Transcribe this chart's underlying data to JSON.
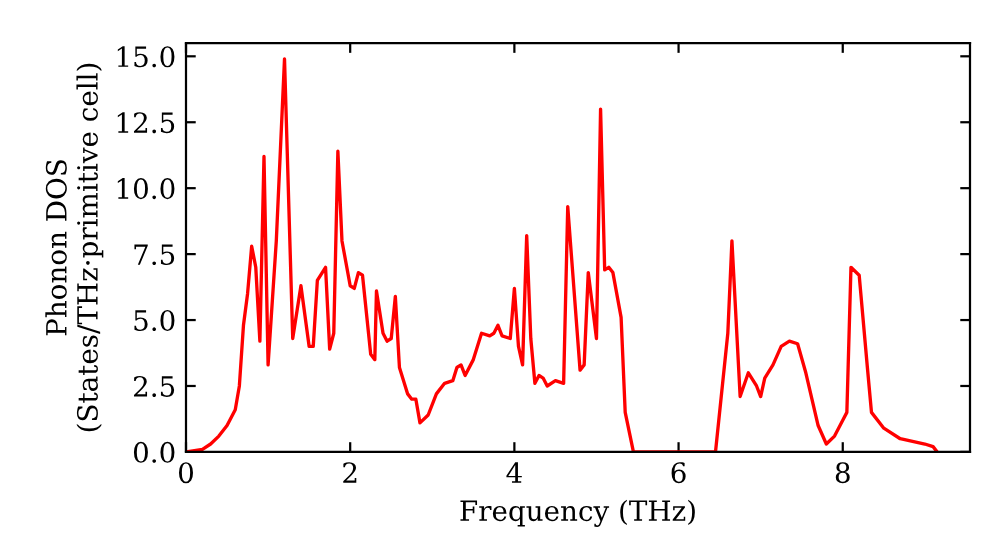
{
  "chart_data": {
    "type": "line",
    "xlabel": "Frequency (THz)",
    "ylabel": "Phonon DOS\n(States/THz·primitive cell)",
    "x": [
      0,
      0.2,
      0.3,
      0.4,
      0.5,
      0.6,
      0.65,
      0.7,
      0.75,
      0.8,
      0.85,
      0.9,
      0.95,
      1.0,
      1.1,
      1.2,
      1.3,
      1.4,
      1.5,
      1.55,
      1.6,
      1.7,
      1.75,
      1.8,
      1.85,
      1.9,
      2.0,
      2.05,
      2.1,
      2.15,
      2.25,
      2.3,
      2.32,
      2.4,
      2.45,
      2.5,
      2.55,
      2.6,
      2.7,
      2.75,
      2.8,
      2.85,
      2.95,
      3.05,
      3.15,
      3.25,
      3.3,
      3.35,
      3.4,
      3.5,
      3.6,
      3.7,
      3.75,
      3.8,
      3.85,
      3.95,
      4.0,
      4.05,
      4.1,
      4.15,
      4.2,
      4.25,
      4.3,
      4.35,
      4.4,
      4.5,
      4.6,
      4.65,
      4.8,
      4.85,
      4.9,
      5.0,
      5.05,
      5.1,
      5.15,
      5.2,
      5.3,
      5.35,
      5.45,
      6.45,
      6.6,
      6.65,
      6.75,
      6.85,
      6.95,
      7.0,
      7.05,
      7.15,
      7.25,
      7.35,
      7.45,
      7.55,
      7.7,
      7.8,
      7.9,
      8.0,
      8.05,
      8.1,
      8.2,
      8.3,
      8.35,
      8.5,
      8.7,
      9.0,
      9.1,
      9.15
    ],
    "series": [
      {
        "color": "#ff0000",
        "values": [
          0,
          0.1,
          0.3,
          0.6,
          1.0,
          1.6,
          2.5,
          4.8,
          6.0,
          7.8,
          7.0,
          4.2,
          11.2,
          3.3,
          8.0,
          14.9,
          4.3,
          6.3,
          4.0,
          4.0,
          6.5,
          7.0,
          3.9,
          4.5,
          11.4,
          8.0,
          6.3,
          6.2,
          6.8,
          6.7,
          3.7,
          3.5,
          6.1,
          4.5,
          4.2,
          4.3,
          5.9,
          3.2,
          2.2,
          2.0,
          2.0,
          1.1,
          1.4,
          2.2,
          2.6,
          2.7,
          3.2,
          3.3,
          2.9,
          3.5,
          4.5,
          4.4,
          4.5,
          4.8,
          4.4,
          4.3,
          6.2,
          4.0,
          3.3,
          8.2,
          4.3,
          2.6,
          2.9,
          2.8,
          2.5,
          2.7,
          2.6,
          9.3,
          3.1,
          3.3,
          6.8,
          4.3,
          13.0,
          6.9,
          7.0,
          6.8,
          5.1,
          1.5,
          0,
          0,
          4.5,
          8.0,
          2.1,
          3.0,
          2.5,
          2.1,
          2.8,
          3.3,
          4.0,
          4.2,
          4.1,
          3.0,
          1.0,
          0.3,
          0.6,
          1.2,
          1.5,
          7.0,
          6.7,
          3.2,
          1.5,
          0.9,
          0.5,
          0.3,
          0.2,
          0
        ]
      }
    ],
    "xlim": [
      0,
      9.55
    ],
    "xticks": [
      0,
      2,
      4,
      6,
      8
    ],
    "ylim": [
      0,
      15.5
    ],
    "yticks": [
      {
        "value": 0,
        "label": "0.0"
      },
      {
        "value": 2.5,
        "label": "2.5"
      },
      {
        "value": 5,
        "label": "5.0"
      },
      {
        "value": 7.5,
        "label": "7.5"
      },
      {
        "value": 10,
        "label": "10.0"
      },
      {
        "value": 12.5,
        "label": "12.5"
      },
      {
        "value": 15,
        "label": "15.0"
      }
    ],
    "grid": false,
    "line_style": "solid",
    "marker": "none"
  }
}
